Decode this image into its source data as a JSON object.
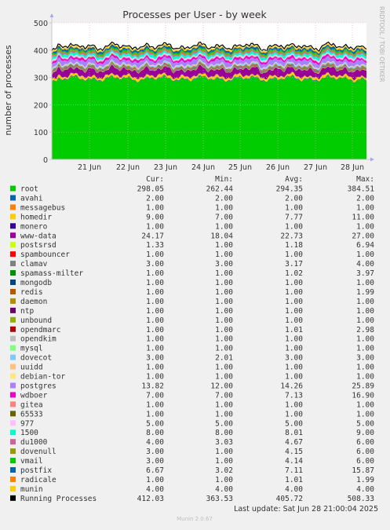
{
  "chart_data": {
    "type": "area",
    "title": "Processes per User - by week",
    "ylabel": "number of processes",
    "ylim": [
      0,
      500
    ],
    "yticks": [
      0,
      100,
      200,
      300,
      400,
      500
    ],
    "x_ticks": [
      "21 Jun",
      "22 Jun",
      "23 Jun",
      "24 Jun",
      "25 Jun",
      "26 Jun",
      "27 Jun",
      "28 Jun"
    ],
    "watermark": "RRDTOOL / TOBI OETIKER",
    "column_headers": [
      "Cur:",
      "Min:",
      "Avg:",
      "Max:"
    ],
    "series": [
      {
        "name": "root",
        "color": "#00cc00",
        "cur": "298.05",
        "min": "262.44",
        "avg": "294.35",
        "max": "384.51"
      },
      {
        "name": "avahi",
        "color": "#0066b3",
        "cur": "2.00",
        "min": "2.00",
        "avg": "2.00",
        "max": "2.00"
      },
      {
        "name": "messagebus",
        "color": "#ff8000",
        "cur": "1.00",
        "min": "1.00",
        "avg": "1.00",
        "max": "1.00"
      },
      {
        "name": "homedir",
        "color": "#ffcc00",
        "cur": "9.00",
        "min": "7.00",
        "avg": "7.77",
        "max": "11.00"
      },
      {
        "name": "monero",
        "color": "#330099",
        "cur": "1.00",
        "min": "1.00",
        "avg": "1.00",
        "max": "1.00"
      },
      {
        "name": "www-data",
        "color": "#990099",
        "cur": "24.17",
        "min": "18.04",
        "avg": "22.73",
        "max": "27.00"
      },
      {
        "name": "postsrsd",
        "color": "#ccff00",
        "cur": "1.33",
        "min": "1.00",
        "avg": "1.18",
        "max": "6.94"
      },
      {
        "name": "spambouncer",
        "color": "#ff0000",
        "cur": "1.00",
        "min": "1.00",
        "avg": "1.00",
        "max": "1.00"
      },
      {
        "name": "clamav",
        "color": "#808080",
        "cur": "3.00",
        "min": "3.00",
        "avg": "3.17",
        "max": "4.00"
      },
      {
        "name": "spamass-milter",
        "color": "#008f00",
        "cur": "1.00",
        "min": "1.00",
        "avg": "1.02",
        "max": "3.97"
      },
      {
        "name": "mongodb",
        "color": "#00487d",
        "cur": "1.00",
        "min": "1.00",
        "avg": "1.00",
        "max": "1.00"
      },
      {
        "name": "redis",
        "color": "#b35a00",
        "cur": "1.00",
        "min": "1.00",
        "avg": "1.00",
        "max": "1.99"
      },
      {
        "name": "daemon",
        "color": "#b38f00",
        "cur": "1.00",
        "min": "1.00",
        "avg": "1.00",
        "max": "1.00"
      },
      {
        "name": "ntp",
        "color": "#6b006b",
        "cur": "1.00",
        "min": "1.00",
        "avg": "1.00",
        "max": "1.00"
      },
      {
        "name": "unbound",
        "color": "#8fb300",
        "cur": "1.00",
        "min": "1.00",
        "avg": "1.00",
        "max": "1.00"
      },
      {
        "name": "opendmarc",
        "color": "#b30000",
        "cur": "1.00",
        "min": "1.00",
        "avg": "1.01",
        "max": "2.98"
      },
      {
        "name": "opendkim",
        "color": "#bebebe",
        "cur": "1.00",
        "min": "1.00",
        "avg": "1.00",
        "max": "1.00"
      },
      {
        "name": "mysql",
        "color": "#80ff80",
        "cur": "1.00",
        "min": "1.00",
        "avg": "1.00",
        "max": "1.00"
      },
      {
        "name": "dovecot",
        "color": "#80c9ff",
        "cur": "3.00",
        "min": "2.01",
        "avg": "3.00",
        "max": "3.00"
      },
      {
        "name": "uuidd",
        "color": "#ffc080",
        "cur": "1.00",
        "min": "1.00",
        "avg": "1.00",
        "max": "1.00"
      },
      {
        "name": "debian-tor",
        "color": "#ffe680",
        "cur": "1.00",
        "min": "1.00",
        "avg": "1.00",
        "max": "1.00"
      },
      {
        "name": "postgres",
        "color": "#aa80ff",
        "cur": "13.82",
        "min": "12.00",
        "avg": "14.26",
        "max": "25.89"
      },
      {
        "name": "wdboer",
        "color": "#ee00cc",
        "cur": "7.00",
        "min": "7.00",
        "avg": "7.13",
        "max": "16.90"
      },
      {
        "name": "gitea",
        "color": "#ff8080",
        "cur": "1.00",
        "min": "1.00",
        "avg": "1.00",
        "max": "1.00"
      },
      {
        "name": "65533",
        "color": "#666600",
        "cur": "1.00",
        "min": "1.00",
        "avg": "1.00",
        "max": "1.00"
      },
      {
        "name": "977",
        "color": "#ffbfff",
        "cur": "5.00",
        "min": "5.00",
        "avg": "5.00",
        "max": "5.00"
      },
      {
        "name": "1500",
        "color": "#00ffcc",
        "cur": "8.00",
        "min": "8.00",
        "avg": "8.01",
        "max": "9.00"
      },
      {
        "name": "du1000",
        "color": "#cc6699",
        "cur": "4.00",
        "min": "3.03",
        "avg": "4.67",
        "max": "6.00"
      },
      {
        "name": "dovenull",
        "color": "#999900",
        "cur": "3.00",
        "min": "1.00",
        "avg": "4.15",
        "max": "6.00"
      },
      {
        "name": "vmail",
        "color": "#00cc00",
        "cur": "3.00",
        "min": "1.00",
        "avg": "4.14",
        "max": "6.00"
      },
      {
        "name": "postfix",
        "color": "#0066b3",
        "cur": "6.67",
        "min": "3.02",
        "avg": "7.11",
        "max": "15.87"
      },
      {
        "name": "radicale",
        "color": "#ff8000",
        "cur": "1.00",
        "min": "1.00",
        "avg": "1.01",
        "max": "1.99"
      },
      {
        "name": "munin",
        "color": "#ffcc00",
        "cur": "4.00",
        "min": "4.00",
        "avg": "4.00",
        "max": "4.00"
      },
      {
        "name": "Running Processes",
        "color": "#000000",
        "cur": "412.03",
        "min": "363.53",
        "avg": "405.72",
        "max": "508.33"
      }
    ],
    "last_update": "Last update: Sat Jun 28 21:00:04 2025",
    "footer": "Munin 2.0.67"
  }
}
